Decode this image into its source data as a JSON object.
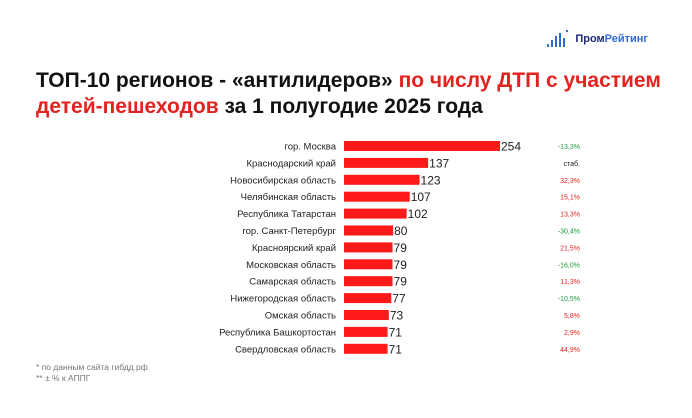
{
  "logo": {
    "part1": "Пром",
    "part2": "Рейтинг"
  },
  "title": {
    "part1": "ТОП-10 регионов - «антилидеров» ",
    "part2": "по числу ДТП с участием детей-пешеходов",
    "part3": " за 1 полугодие 2025 года"
  },
  "footnotes": [
    "* по данным сайта гибдд.рф",
    "** ± % к АППГ"
  ],
  "colors": {
    "bar": "#ff1a1a",
    "positive": "#e3231f",
    "negative": "#1f9c3b",
    "neutral": "#222222"
  },
  "chart_data": {
    "type": "bar",
    "orientation": "horizontal",
    "categories": [
      "гор. Москва",
      "Краснодарский край",
      "Новосибирская область",
      "Челябинская область",
      "Республика Татарстан",
      "гор. Санкт-Петербург",
      "Красноярский край",
      "Московская область",
      "Самарская область",
      "Нижегородская область",
      "Омская область",
      "Республика Башкортостан",
      "Свердловская область"
    ],
    "values": [
      254,
      137,
      123,
      107,
      102,
      80,
      79,
      79,
      79,
      77,
      73,
      71,
      71
    ],
    "changes": [
      "-13,3%",
      "стаб.",
      "32,3%",
      "15,1%",
      "13,3%",
      "-30,4%",
      "21,5%",
      "-16,0%",
      "11,3%",
      "-10,5%",
      "5,8%",
      "2,9%",
      "44,9%"
    ],
    "change_sign": [
      "neg",
      "neutral",
      "pos",
      "pos",
      "pos",
      "neg",
      "pos",
      "neg",
      "pos",
      "neg",
      "pos",
      "pos",
      "pos"
    ]
  }
}
